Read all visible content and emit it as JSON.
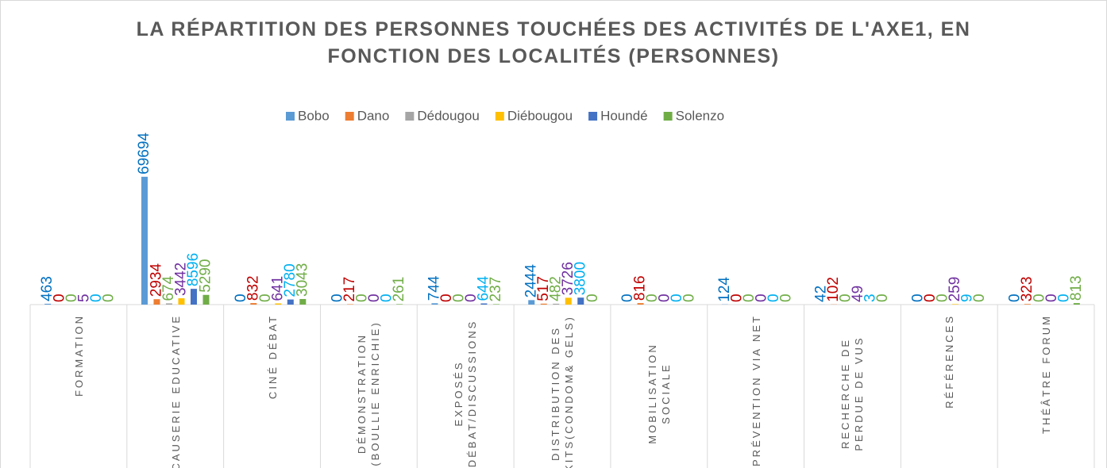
{
  "chart_data": {
    "type": "bar",
    "title": "LA RÉPARTITION DES PERSONNES TOUCHÉES DES ACTIVITÉS DE L'AXE1, EN FONCTION DES LOCALITÉS (PERSONNES)",
    "categories": [
      "FORMATION",
      "CAUSERIE EDUCATIVE",
      "CINÉ DÉBAT",
      "DÉMONSTRATION (BOULLIE ENRICHIE)",
      "EXPOSÉS DÉBAT/DISCUSSIONS",
      "DISTRIBUTION DES KITS(CONDOM& GELS)",
      "MOBILISATION SOCIALE",
      "PRÉVENTION VIA NET",
      "RECHERCHE DE PERDUE DE VUS",
      "RÉFÉRENCES",
      "THÉÂTRE FORUM"
    ],
    "series": [
      {
        "name": "Bobo",
        "color": "#5b9bd5",
        "label_color": "#0070c0",
        "values": [
          463,
          69694,
          0,
          0,
          744,
          2444,
          0,
          124,
          42,
          0,
          0
        ]
      },
      {
        "name": "Dano",
        "color": "#ed7d31",
        "label_color": "#c00000",
        "values": [
          0,
          2934,
          832,
          217,
          0,
          517,
          816,
          0,
          102,
          0,
          323
        ]
      },
      {
        "name": "Dédougou",
        "color": "#a5a5a5",
        "label_color": "#70ad47",
        "values": [
          0,
          674,
          0,
          0,
          0,
          482,
          0,
          0,
          0,
          0,
          0
        ]
      },
      {
        "name": "Diébougou",
        "color": "#ffc000",
        "label_color": "#7030a0",
        "values": [
          5,
          3442,
          641,
          0,
          0,
          3726,
          0,
          0,
          49,
          259,
          0
        ]
      },
      {
        "name": "Houndé",
        "color": "#4472c4",
        "label_color": "#00b0f0",
        "values": [
          0,
          8596,
          2780,
          0,
          644,
          3800,
          0,
          0,
          3,
          9,
          0
        ]
      },
      {
        "name": "Solenzo",
        "color": "#70ad47",
        "label_color": "#70ad47",
        "values": [
          0,
          5290,
          3043,
          261,
          237,
          0,
          0,
          0,
          0,
          0,
          813
        ]
      }
    ],
    "ylim": [
      0,
      80000
    ],
    "legend": "top"
  }
}
